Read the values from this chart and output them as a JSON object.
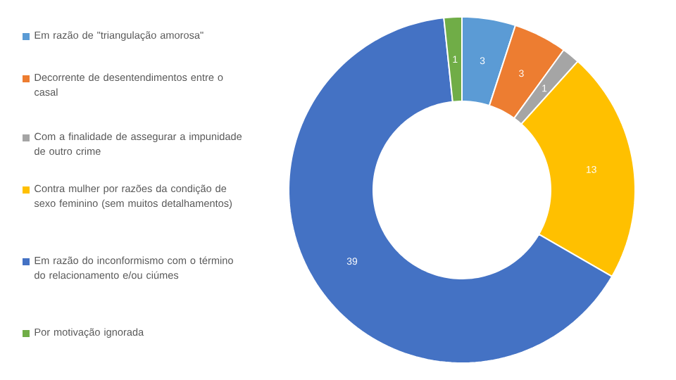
{
  "chart_data": {
    "type": "donut",
    "categories": [
      "Em razão de \"triangulação amorosa\"",
      "Decorrente de desentendimentos entre o casal",
      "Com a finalidade de assegurar a impunidade de outro crime",
      "Contra mulher por razões da condição de sexo feminino (sem muitos detalhamentos)",
      "Em razão do inconformismo com o término do relacionamento e/ou ciúmes",
      "Por motivação ignorada"
    ],
    "values": [
      3,
      3,
      1,
      13,
      39,
      1
    ],
    "colors": [
      "#5b9bd5",
      "#ed7d31",
      "#a5a5a5",
      "#ffc000",
      "#4472c4",
      "#70ad47"
    ],
    "data_labels": true,
    "legend": "left"
  }
}
